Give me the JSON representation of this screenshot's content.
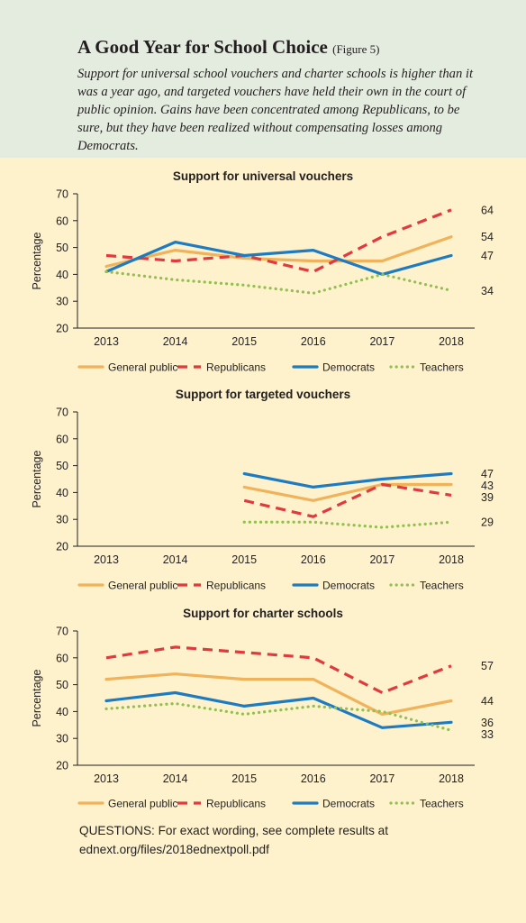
{
  "header": {
    "title": "A Good Year for School Choice",
    "figure_label": "(Figure 5)",
    "subtitle": "Support for universal school vouchers and charter schools is higher than it was a year ago, and targeted vouchers have held their own in the court of public opinion. Gains have been concentrated among Republicans, to be sure, but they have been realized without compensating losses among Democrats."
  },
  "colors": {
    "General public": "#f0b25a",
    "Republicans": "#e03a3e",
    "Democrats": "#1f7bc1",
    "Teachers": "#93bf4f"
  },
  "chart_data": [
    {
      "type": "line",
      "title": "Support for universal vouchers",
      "xlabel": "",
      "ylabel": "Percentage",
      "ylim": [
        20,
        70
      ],
      "yticks": [
        20,
        30,
        40,
        50,
        60,
        70
      ],
      "x": [
        "2013",
        "2014",
        "2015",
        "2016",
        "2017",
        "2018"
      ],
      "series": [
        {
          "name": "General public",
          "values": [
            43,
            49,
            46,
            45,
            45,
            54
          ],
          "end_label": "54"
        },
        {
          "name": "Republicans",
          "values": [
            47,
            45,
            47,
            41,
            54,
            64
          ],
          "end_label": "64"
        },
        {
          "name": "Democrats",
          "values": [
            41,
            52,
            47,
            49,
            40,
            47
          ],
          "end_label": "47"
        },
        {
          "name": "Teachers",
          "values": [
            41,
            38,
            36,
            33,
            40,
            34
          ],
          "end_label": "34"
        }
      ],
      "legend": "bottom"
    },
    {
      "type": "line",
      "title": "Support for targeted vouchers",
      "xlabel": "",
      "ylabel": "Percentage",
      "ylim": [
        20,
        70
      ],
      "yticks": [
        20,
        30,
        40,
        50,
        60,
        70
      ],
      "x": [
        "2013",
        "2014",
        "2015",
        "2016",
        "2017",
        "2018"
      ],
      "series": [
        {
          "name": "General public",
          "values": [
            null,
            null,
            42,
            37,
            43,
            43
          ],
          "end_label": "43"
        },
        {
          "name": "Republicans",
          "values": [
            null,
            null,
            37,
            31,
            43,
            39
          ],
          "end_label": "39"
        },
        {
          "name": "Democrats",
          "values": [
            null,
            null,
            47,
            42,
            45,
            47
          ],
          "end_label": "47"
        },
        {
          "name": "Teachers",
          "values": [
            null,
            null,
            29,
            29,
            27,
            29
          ],
          "end_label": "29"
        }
      ],
      "legend": "bottom"
    },
    {
      "type": "line",
      "title": "Support for charter schools",
      "xlabel": "",
      "ylabel": "Percentage",
      "ylim": [
        20,
        70
      ],
      "yticks": [
        20,
        30,
        40,
        50,
        60,
        70
      ],
      "x": [
        "2013",
        "2014",
        "2015",
        "2016",
        "2017",
        "2018"
      ],
      "series": [
        {
          "name": "General public",
          "values": [
            52,
            54,
            52,
            52,
            39,
            44
          ],
          "end_label": "44"
        },
        {
          "name": "Republicans",
          "values": [
            60,
            64,
            62,
            60,
            47,
            57
          ],
          "end_label": "57"
        },
        {
          "name": "Democrats",
          "values": [
            44,
            47,
            42,
            45,
            34,
            36
          ],
          "end_label": "36"
        },
        {
          "name": "Teachers",
          "values": [
            41,
            43,
            39,
            42,
            40,
            33
          ],
          "end_label": "33"
        }
      ],
      "legend": "bottom"
    }
  ],
  "footer": {
    "questions": "QUESTIONS: For exact wording, see complete results at ednext.org/files/2018ednextpoll.pdf"
  }
}
